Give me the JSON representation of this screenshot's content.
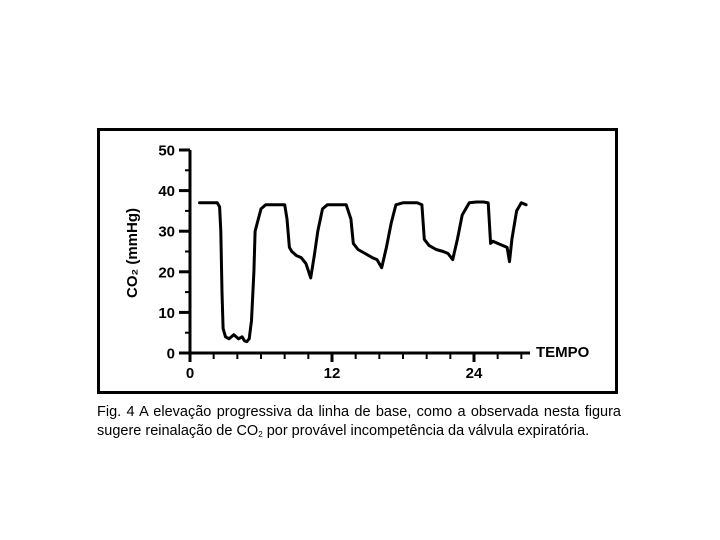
{
  "chart_data": {
    "type": "line",
    "title": "",
    "xlabel": "TEMPO",
    "ylabel": "CO₂  (mmHg)",
    "xlim": [
      0,
      30
    ],
    "ylim": [
      0,
      50
    ],
    "x_ticks": [
      0,
      12,
      24
    ],
    "x_minor_ticks": [
      2,
      4,
      6,
      8,
      10,
      14,
      16,
      18,
      20,
      22,
      26,
      28
    ],
    "y_ticks": [
      0,
      10,
      20,
      30,
      40,
      50
    ],
    "grid": false,
    "series": [
      {
        "x": [
          0.8,
          1.5,
          2.3,
          2.5,
          2.6,
          2.7,
          2.8,
          3.0,
          3.3,
          3.7,
          4.1,
          4.4,
          4.6,
          4.8,
          5.0,
          5.2,
          5.4,
          5.5,
          6.0,
          6.4,
          7.0,
          7.6,
          8.0,
          8.2,
          8.4,
          8.6,
          9.0,
          9.4,
          9.8,
          10.2,
          10.5,
          10.8,
          11.2,
          11.6,
          12.0,
          12.6,
          13.2,
          13.6,
          13.8,
          14.2,
          14.8,
          15.4,
          15.8,
          16.2,
          16.6,
          17.0,
          17.4,
          18.0,
          18.6,
          19.2,
          19.6,
          19.8,
          20.2,
          20.8,
          21.4,
          21.8,
          22.2,
          22.6,
          23.0,
          23.6,
          24.2,
          24.8,
          25.2,
          25.4,
          25.6,
          26.0,
          26.4,
          26.8,
          27.0,
          27.2,
          27.6,
          28.0,
          28.4
        ],
        "y": [
          37,
          37,
          37,
          36,
          30,
          15,
          6,
          4,
          3.5,
          4.5,
          3.5,
          4,
          3,
          2.8,
          3.5,
          8,
          20,
          30,
          35.5,
          36.5,
          36.5,
          36.5,
          36.5,
          33,
          26,
          25,
          24,
          23.5,
          22,
          18.5,
          24,
          30,
          35.5,
          36.5,
          36.5,
          36.5,
          36.5,
          33,
          27,
          25.5,
          24.5,
          23.5,
          23,
          21,
          26,
          32,
          36.5,
          37,
          37,
          37,
          36.5,
          28,
          26.5,
          25.5,
          25,
          24.5,
          23,
          28,
          34,
          37,
          37.2,
          37.2,
          37,
          27,
          27.5,
          27,
          26.5,
          26,
          22.5,
          28,
          35,
          37,
          36.5
        ]
      }
    ]
  },
  "caption": {
    "text_before": "Fig. 4  A elevação progressiva da linha de base, como a observada nesta figura sugere reinalação de CO",
    "subscript": "2",
    "text_after": " por provável incompetência da válvula  expiratória."
  }
}
